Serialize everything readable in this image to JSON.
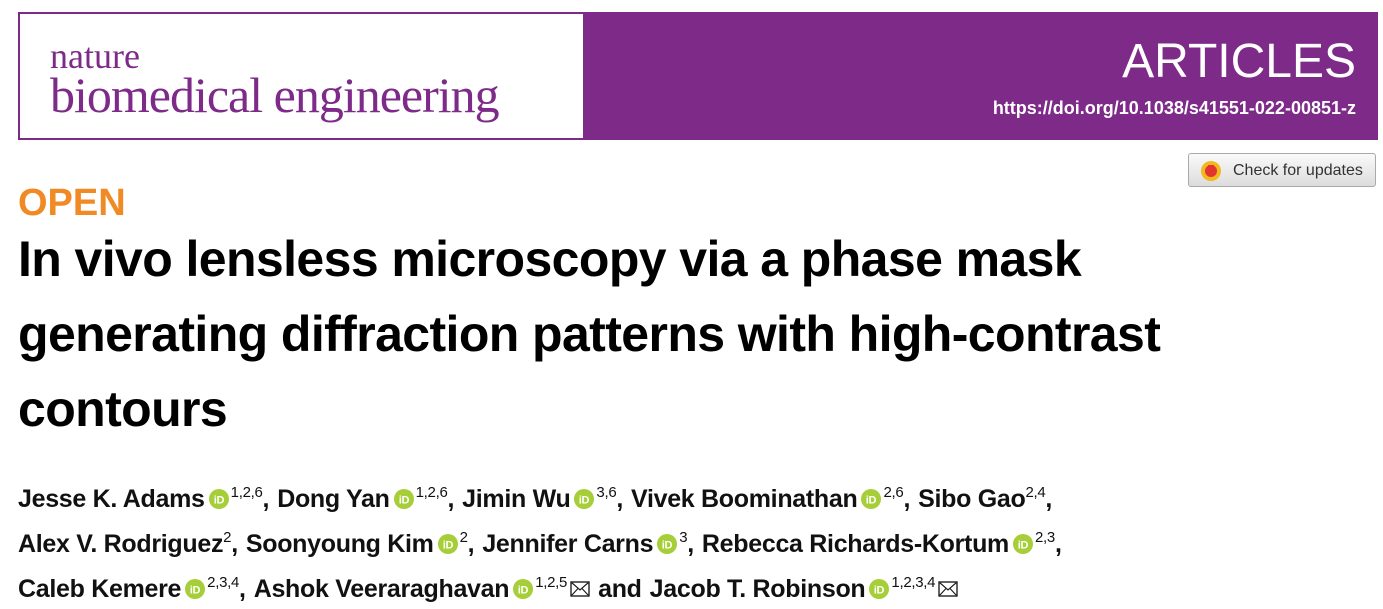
{
  "header": {
    "journal_top": "nature",
    "journal_name": "biomedical engineering",
    "section": "ARTICLES",
    "doi": "https://doi.org/10.1038/s41551-022-00851-z"
  },
  "update_button": "Check for updates",
  "access": "OPEN",
  "title_lines": [
    "In vivo lensless microscopy via a phase mask",
    "generating diffraction patterns with high-contrast",
    "contours"
  ],
  "author_lines": [
    [
      {
        "name": "Jesse K. Adams",
        "orcid": true,
        "affiliations": "1,2,6",
        "sep": ","
      },
      {
        "name": "Dong Yan",
        "orcid": true,
        "affiliations": "1,2,6",
        "sep": ","
      },
      {
        "name": "Jimin Wu",
        "orcid": true,
        "affiliations": "3,6",
        "sep": ","
      },
      {
        "name": "Vivek Boominathan",
        "orcid": true,
        "affiliations": "2,6",
        "sep": ","
      },
      {
        "name": "Sibo Gao",
        "orcid": false,
        "affiliations": "2,4",
        "sep": ","
      }
    ],
    [
      {
        "name": "Alex V. Rodriguez",
        "orcid": false,
        "affiliations": "2",
        "sep": ","
      },
      {
        "name": "Soonyoung Kim",
        "orcid": true,
        "affiliations": "2",
        "sep": ","
      },
      {
        "name": "Jennifer Carns",
        "orcid": true,
        "affiliations": "3",
        "sep": ","
      },
      {
        "name": "Rebecca Richards-Kortum",
        "orcid": true,
        "affiliations": "2,3",
        "sep": ","
      }
    ],
    [
      {
        "name": "Caleb Kemere",
        "orcid": true,
        "affiliations": "2,3,4",
        "sep": ","
      },
      {
        "name": "Ashok Veeraraghavan",
        "orcid": true,
        "affiliations": "1,2,5",
        "corresponding": true,
        "sep": "and"
      },
      {
        "name": "Jacob T. Robinson",
        "orcid": true,
        "affiliations": "1,2,3,4",
        "corresponding": true
      }
    ]
  ]
}
